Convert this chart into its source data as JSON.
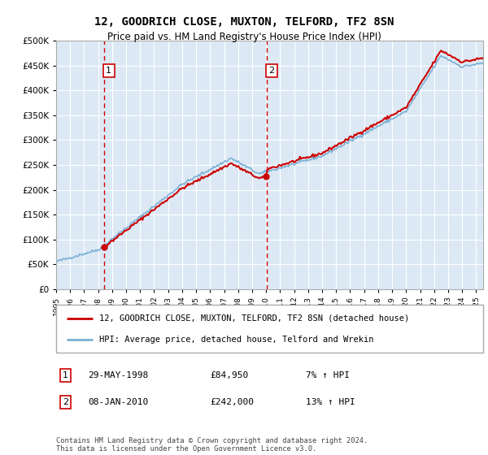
{
  "title": "12, GOODRICH CLOSE, MUXTON, TELFORD, TF2 8SN",
  "subtitle": "Price paid vs. HM Land Registry's House Price Index (HPI)",
  "property_label": "12, GOODRICH CLOSE, MUXTON, TELFORD, TF2 8SN (detached house)",
  "hpi_label": "HPI: Average price, detached house, Telford and Wrekin",
  "sale1_date": 1998.41,
  "sale1_price": 84950,
  "sale1_label": "29-MAY-1998",
  "sale1_price_label": "£84,950",
  "sale1_hpi_label": "7% ↑ HPI",
  "sale2_date": 2010.03,
  "sale2_price": 242000,
  "sale2_label": "08-JAN-2010",
  "sale2_price_label": "£242,000",
  "sale2_hpi_label": "13% ↑ HPI",
  "xmin": 1995,
  "xmax": 2025.5,
  "ymin": 0,
  "ymax": 500000,
  "yticks": [
    0,
    50000,
    100000,
    150000,
    200000,
    250000,
    300000,
    350000,
    400000,
    450000,
    500000
  ],
  "line_color_red": "#cc0000",
  "line_color_blue": "#7ab0d4",
  "bg_color": "#dce9f5",
  "grid_color": "#ffffff",
  "footnote": "Contains HM Land Registry data © Crown copyright and database right 2024.\nThis data is licensed under the Open Government Licence v3.0."
}
